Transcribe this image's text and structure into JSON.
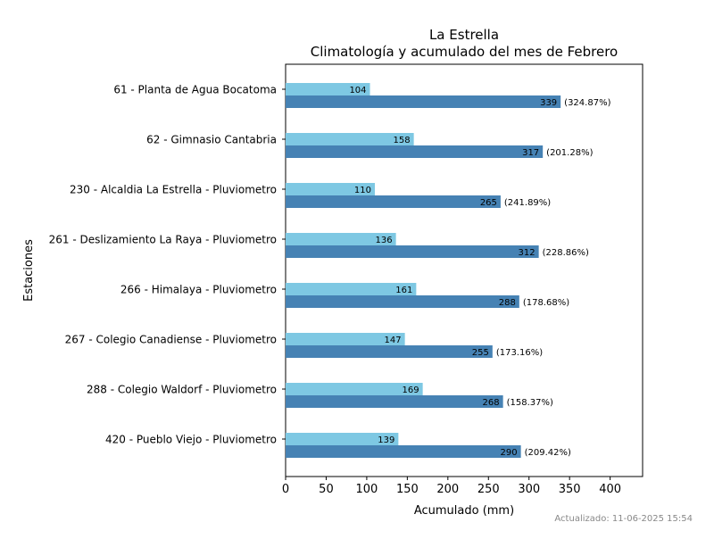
{
  "chart_data": {
    "type": "bar",
    "orientation": "horizontal",
    "title": "La Estrella",
    "subtitle": "Climatología y acumulado del mes de Febrero",
    "xlabel": "Acumulado (mm)",
    "ylabel": "Estaciones",
    "xlim": [
      0,
      440
    ],
    "xticks": [
      0,
      50,
      100,
      150,
      200,
      250,
      300,
      350,
      400
    ],
    "grid": false,
    "categories": [
      "61 - Planta de Agua Bocatoma",
      "62 - Gimnasio Cantabria",
      "230 - Alcaldia La Estrella - Pluviometro",
      "261 - Deslizamiento La Raya - Pluviometro",
      "266 - Himalaya - Pluviometro",
      "267 - Colegio Canadiense - Pluviometro",
      "288 - Colegio Waldorf - Pluviometro",
      "420 - Pueblo Viejo - Pluviometro"
    ],
    "series": [
      {
        "values": [
          104,
          158,
          110,
          136,
          161,
          147,
          169,
          139
        ],
        "color": "#7ec8e3"
      },
      {
        "values": [
          339,
          317,
          265,
          312,
          288,
          255,
          268,
          290
        ],
        "color": "#4682b4"
      }
    ],
    "percent_labels": [
      "(324.87%)",
      "(201.28%)",
      "(241.89%)",
      "(228.86%)",
      "(178.68%)",
      "(173.16%)",
      "(158.37%)",
      "(209.42%)"
    ]
  },
  "footer": {
    "updated": "Actualizado: 11-06-2025 15:54"
  }
}
